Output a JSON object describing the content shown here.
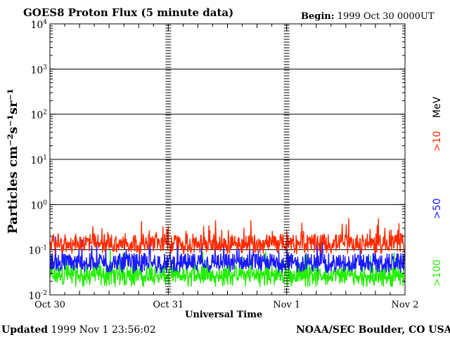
{
  "header": {
    "title": "GOES8 Proton Flux (5 minute data)",
    "begin_label": "Begin:",
    "begin_value": "1999 Oct 30 0000UT"
  },
  "footer": {
    "updated_label": "Updated",
    "updated_value": "1999 Nov  1 23:56:02",
    "credit": "NOAA/SEC Boulder, CO USA"
  },
  "chart_data": {
    "type": "line",
    "title": "GOES8 Proton Flux (5 minute data)",
    "xlabel": "Universal Time",
    "ylabel": "Particles cm⁻²s⁻¹sr⁻¹",
    "y_scale": "log",
    "ylim": [
      0.01,
      10000
    ],
    "y_ticks": [
      {
        "value": 0.01,
        "base": "10",
        "exp": "-2"
      },
      {
        "value": 0.1,
        "base": "10",
        "exp": "-1"
      },
      {
        "value": 1,
        "base": "10",
        "exp": "0"
      },
      {
        "value": 10,
        "base": "10",
        "exp": "1"
      },
      {
        "value": 100,
        "base": "10",
        "exp": "2"
      },
      {
        "value": 1000,
        "base": "10",
        "exp": "3"
      },
      {
        "value": 10000,
        "base": "10",
        "exp": "4"
      }
    ],
    "x_range": [
      "1999-10-30 00:00",
      "1999-11-02 00:00"
    ],
    "x_ticks": [
      "Oct 30",
      "Oct 31",
      "Nov 1",
      "Nov 2"
    ],
    "grid": true,
    "legend_position": "right, vertical",
    "legend_unit": "MeV",
    "series": [
      {
        "name": ">10",
        "color": "#ff2a00",
        "typical": 0.15,
        "low": 0.08,
        "high": 0.5
      },
      {
        "name": ">50",
        "color": "#1a1aff",
        "typical": 0.055,
        "low": 0.03,
        "high": 0.2
      },
      {
        "name": ">100",
        "color": "#22ee00",
        "typical": 0.03,
        "low": 0.015,
        "high": 0.1
      }
    ]
  }
}
